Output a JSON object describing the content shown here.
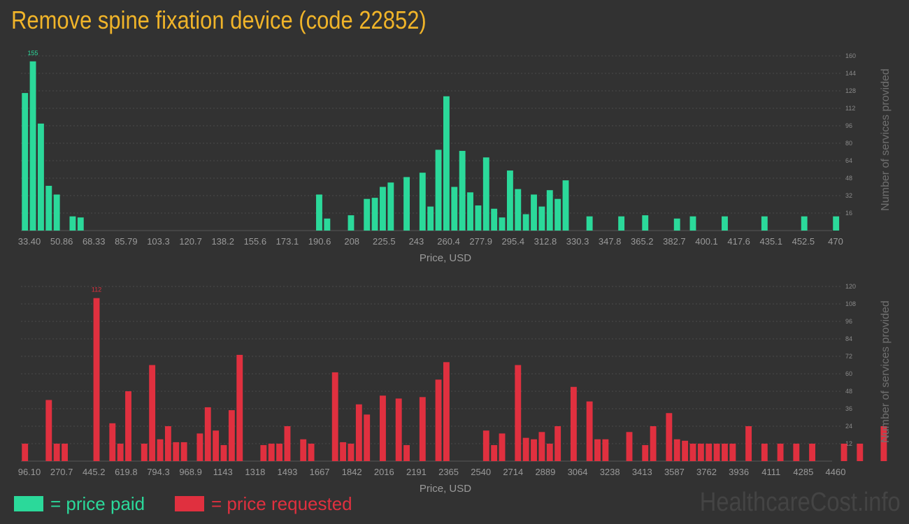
{
  "title": "Remove spine fixation device (code 22852)",
  "legend": {
    "paid": "= price paid",
    "requested": "= price requested"
  },
  "watermark": "HealthcareCost.info",
  "colors": {
    "paid": "#2bd99a",
    "requested": "#e0303f",
    "background": "#323232",
    "title": "#f0b429"
  },
  "chart_data": [
    {
      "type": "bar",
      "name": "price paid",
      "xlabel": "Price, USD",
      "ylabel": "Number of services provided",
      "ylim": [
        0,
        160
      ],
      "yticks": [
        "16",
        "32",
        "48",
        "64",
        "80",
        "96",
        "112",
        "128",
        "144",
        "160"
      ],
      "xticks": [
        "33.40",
        "50.86",
        "68.33",
        "85.79",
        "103.3",
        "120.7",
        "138.2",
        "155.6",
        "173.1",
        "190.6",
        "208",
        "225.5",
        "243",
        "260.4",
        "277.9",
        "295.4",
        "312.8",
        "330.3",
        "347.8",
        "365.2",
        "382.7",
        "400.1",
        "417.6",
        "435.1",
        "452.5",
        "470"
      ],
      "max_label": "155",
      "bins": 102,
      "x": [
        0,
        1,
        2,
        3,
        4,
        6,
        7,
        37,
        38,
        41,
        43,
        44,
        45,
        46,
        48,
        50,
        51,
        52,
        53,
        54,
        55,
        56,
        57,
        58,
        59,
        60,
        61,
        62,
        63,
        64,
        65,
        66,
        67,
        68,
        71,
        75,
        78,
        82,
        84,
        88,
        93,
        98,
        102
      ],
      "values": [
        126,
        155,
        98,
        41,
        33,
        13,
        12,
        33,
        11,
        14,
        29,
        30,
        40,
        44,
        49,
        53,
        22,
        74,
        123,
        40,
        73,
        35,
        23,
        67,
        20,
        12,
        55,
        38,
        15,
        33,
        22,
        37,
        29,
        46,
        13,
        13,
        14,
        11,
        13,
        13,
        13,
        13,
        13
      ]
    },
    {
      "type": "bar",
      "name": "price requested",
      "xlabel": "Price, USD",
      "ylabel": "Number of services provided",
      "ylim": [
        0,
        120
      ],
      "yticks": [
        "12",
        "24",
        "36",
        "48",
        "60",
        "72",
        "84",
        "96",
        "108",
        "120"
      ],
      "xticks": [
        "96.10",
        "270.7",
        "445.2",
        "619.8",
        "794.3",
        "968.9",
        "1143",
        "1318",
        "1493",
        "1667",
        "1842",
        "2016",
        "2191",
        "2365",
        "2540",
        "2714",
        "2889",
        "3064",
        "3238",
        "3413",
        "3587",
        "3762",
        "3936",
        "4111",
        "4285",
        "4460"
      ],
      "max_label": "112",
      "bins": 102,
      "x": [
        0,
        3,
        4,
        5,
        9,
        11,
        12,
        13,
        15,
        16,
        17,
        18,
        19,
        20,
        22,
        23,
        24,
        25,
        26,
        27,
        30,
        31,
        32,
        33,
        35,
        36,
        39,
        40,
        41,
        42,
        43,
        45,
        47,
        48,
        50,
        52,
        53,
        58,
        59,
        60,
        62,
        63,
        64,
        65,
        66,
        67,
        69,
        71,
        72,
        73,
        76,
        78,
        79,
        81,
        82,
        83,
        84,
        85,
        86,
        87,
        88,
        89,
        91,
        93,
        95,
        97,
        99,
        103,
        105,
        108
      ],
      "values": [
        12,
        42,
        12,
        12,
        112,
        26,
        12,
        48,
        12,
        66,
        15,
        24,
        13,
        13,
        19,
        37,
        21,
        11,
        35,
        73,
        11,
        12,
        12,
        24,
        15,
        12,
        61,
        13,
        12,
        39,
        32,
        45,
        43,
        11,
        44,
        56,
        68,
        21,
        11,
        19,
        66,
        16,
        15,
        20,
        12,
        24,
        51,
        41,
        15,
        15,
        20,
        11,
        24,
        33,
        15,
        14,
        12,
        12,
        12,
        12,
        12,
        12,
        24,
        12,
        12,
        12,
        12,
        12,
        12,
        24
      ]
    }
  ]
}
